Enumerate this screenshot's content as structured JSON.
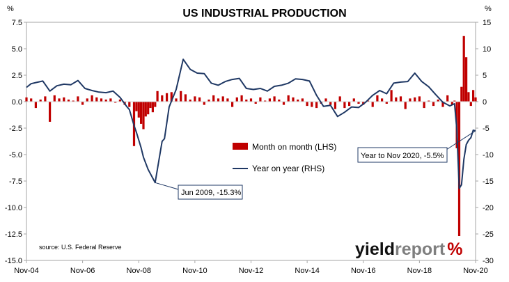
{
  "chart_data": {
    "type": "bar+line",
    "title": "US INDUSTRIAL PRODUCTION",
    "left_axis": {
      "unit": "%",
      "ylim": [
        -15,
        7.5
      ],
      "ticks": [
        "7.5",
        "5.0",
        "2.5",
        "0.0",
        "-2.5",
        "-5.0",
        "-7.5",
        "-10.0",
        "-12.5",
        "-15.0"
      ]
    },
    "right_axis": {
      "unit": "%",
      "ylim": [
        -30,
        15
      ],
      "ticks": [
        "15",
        "10",
        "5",
        "0",
        "-5",
        "-10",
        "-15",
        "-20",
        "-25",
        "-30"
      ]
    },
    "x_axis": {
      "range": [
        "Nov-04",
        "Nov-20"
      ],
      "ticks": [
        "Nov-04",
        "Nov-06",
        "Nov-08",
        "Nov-10",
        "Nov-12",
        "Nov-14",
        "Nov-16",
        "Nov-18",
        "Nov-20"
      ]
    },
    "grid": false,
    "legend": {
      "placement": "center",
      "entries": [
        {
          "name": "Month on month (LHS)",
          "color": "#c00000",
          "type": "bar"
        },
        {
          "name": "Year on year (RHS)",
          "color": "#1f3864",
          "type": "line"
        }
      ]
    },
    "series": [
      {
        "name": "Month on month (LHS)",
        "axis": "left",
        "type": "bar",
        "color": "#c00000",
        "x": [
          "2004-11",
          "2005-01",
          "2005-03",
          "2005-05",
          "2005-07",
          "2005-09",
          "2005-11",
          "2006-01",
          "2006-03",
          "2006-05",
          "2006-07",
          "2006-09",
          "2006-11",
          "2007-01",
          "2007-03",
          "2007-05",
          "2007-07",
          "2007-09",
          "2007-11",
          "2008-01",
          "2008-03",
          "2008-05",
          "2008-07",
          "2008-09",
          "2008-10",
          "2008-11",
          "2008-12",
          "2009-01",
          "2009-02",
          "2009-03",
          "2009-04",
          "2009-05",
          "2009-06",
          "2009-07",
          "2009-09",
          "2009-11",
          "2010-01",
          "2010-03",
          "2010-05",
          "2010-07",
          "2010-09",
          "2010-11",
          "2011-01",
          "2011-03",
          "2011-05",
          "2011-07",
          "2011-09",
          "2011-11",
          "2012-01",
          "2012-03",
          "2012-05",
          "2012-07",
          "2012-09",
          "2012-11",
          "2013-01",
          "2013-03",
          "2013-05",
          "2013-07",
          "2013-09",
          "2013-11",
          "2014-01",
          "2014-03",
          "2014-05",
          "2014-07",
          "2014-09",
          "2014-11",
          "2015-01",
          "2015-03",
          "2015-05",
          "2015-07",
          "2015-09",
          "2015-11",
          "2016-01",
          "2016-03",
          "2016-05",
          "2016-07",
          "2016-09",
          "2016-11",
          "2017-01",
          "2017-03",
          "2017-05",
          "2017-07",
          "2017-09",
          "2017-11",
          "2018-01",
          "2018-03",
          "2018-05",
          "2018-07",
          "2018-09",
          "2018-11",
          "2019-01",
          "2019-03",
          "2019-05",
          "2019-07",
          "2019-09",
          "2019-11",
          "2020-01",
          "2020-02",
          "2020-03",
          "2020-04",
          "2020-05",
          "2020-06",
          "2020-07",
          "2020-08",
          "2020-09",
          "2020-10",
          "2020-11"
        ],
        "values": [
          0.4,
          0.3,
          -0.6,
          0.2,
          0.5,
          -1.9,
          0.6,
          0.3,
          0.4,
          0.2,
          0.1,
          0.5,
          -0.3,
          0.3,
          0.6,
          0.4,
          0.3,
          0.2,
          0.3,
          -0.1,
          0.2,
          -0.3,
          -0.5,
          -4.2,
          -0.9,
          -1.5,
          -2.1,
          -2.6,
          -1.4,
          -1.2,
          -0.6,
          -1.0,
          -0.5,
          1.0,
          0.6,
          0.8,
          0.9,
          0.3,
          1.0,
          0.7,
          0.2,
          0.5,
          0.4,
          -0.3,
          0.2,
          0.6,
          0.3,
          0.5,
          0.3,
          -0.5,
          0.4,
          0.6,
          0.2,
          0.3,
          -0.2,
          0.4,
          0.1,
          0.3,
          0.5,
          0.2,
          -0.3,
          0.6,
          0.4,
          0.2,
          0.3,
          -0.4,
          -0.5,
          -0.6,
          -0.2,
          0.3,
          -0.3,
          -0.7,
          0.5,
          -0.6,
          -0.4,
          0.3,
          -0.2,
          -0.3,
          0.1,
          -0.5,
          0.6,
          0.3,
          -0.2,
          1.1,
          0.4,
          0.5,
          -0.7,
          0.3,
          0.4,
          0.5,
          -0.6,
          0.1,
          -0.4,
          0.2,
          -0.5,
          0.6,
          -0.3,
          0.1,
          -4.4,
          -12.7,
          1.4,
          6.2,
          4.2,
          0.9,
          -0.4,
          1.1,
          0.4
        ]
      },
      {
        "name": "Year on year (RHS)",
        "axis": "right",
        "type": "line",
        "color": "#1f3864",
        "x": [
          "2004-11",
          "2005-01",
          "2005-03",
          "2005-06",
          "2005-09",
          "2005-12",
          "2006-03",
          "2006-06",
          "2006-09",
          "2006-12",
          "2007-03",
          "2007-06",
          "2007-09",
          "2007-12",
          "2008-03",
          "2008-06",
          "2008-07",
          "2008-09",
          "2008-10",
          "2008-12",
          "2009-01",
          "2009-03",
          "2009-06",
          "2009-09",
          "2009-10",
          "2009-12",
          "2010-03",
          "2010-06",
          "2010-09",
          "2010-12",
          "2011-03",
          "2011-06",
          "2011-09",
          "2011-12",
          "2012-03",
          "2012-06",
          "2012-09",
          "2012-12",
          "2013-03",
          "2013-06",
          "2013-09",
          "2013-12",
          "2014-03",
          "2014-06",
          "2014-09",
          "2014-12",
          "2015-03",
          "2015-06",
          "2015-09",
          "2015-12",
          "2016-03",
          "2016-06",
          "2016-09",
          "2016-12",
          "2017-03",
          "2017-06",
          "2017-09",
          "2017-12",
          "2018-03",
          "2018-06",
          "2018-09",
          "2018-12",
          "2019-03",
          "2019-06",
          "2019-09",
          "2019-12",
          "2020-02",
          "2020-03",
          "2020-04",
          "2020-05",
          "2020-06",
          "2020-07",
          "2020-08",
          "2020-09",
          "2020-10",
          "2020-11"
        ],
        "values": [
          2.7,
          3.4,
          3.6,
          3.9,
          2.0,
          3.0,
          3.3,
          3.2,
          4.0,
          2.5,
          2.1,
          1.8,
          1.7,
          2.0,
          0.8,
          -1.0,
          -1.5,
          -4.5,
          -5.8,
          -8.7,
          -10.5,
          -12.8,
          -15.3,
          -7.5,
          -7.0,
          -1.0,
          2.3,
          8.0,
          6.1,
          5.4,
          5.3,
          3.5,
          3.1,
          3.8,
          4.2,
          4.4,
          2.5,
          2.3,
          2.5,
          2.0,
          2.9,
          3.1,
          3.5,
          4.3,
          4.2,
          3.9,
          1.2,
          -0.9,
          -0.7,
          -2.8,
          -2.0,
          -1.0,
          -1.1,
          -0.1,
          1.2,
          2.1,
          1.5,
          3.5,
          3.7,
          3.8,
          5.4,
          3.8,
          2.8,
          1.3,
          -0.1,
          -0.8,
          -0.4,
          -5.3,
          -16.4,
          -15.7,
          -10.9,
          -8.1,
          -7.3,
          -6.8,
          -5.4,
          -5.5
        ]
      }
    ],
    "annotations": [
      {
        "text": "Jun 2009, -15.3%",
        "x": "2009-06",
        "y": -15.3,
        "axis": "right"
      },
      {
        "text": "Year to Nov 2020, -5.5%",
        "x": "2020-11",
        "y": -5.5,
        "axis": "right"
      }
    ],
    "source": "source: U.S. Federal Reserve",
    "logo": {
      "text_dark": "yield",
      "text_light": "report",
      "symbol": "%"
    }
  }
}
